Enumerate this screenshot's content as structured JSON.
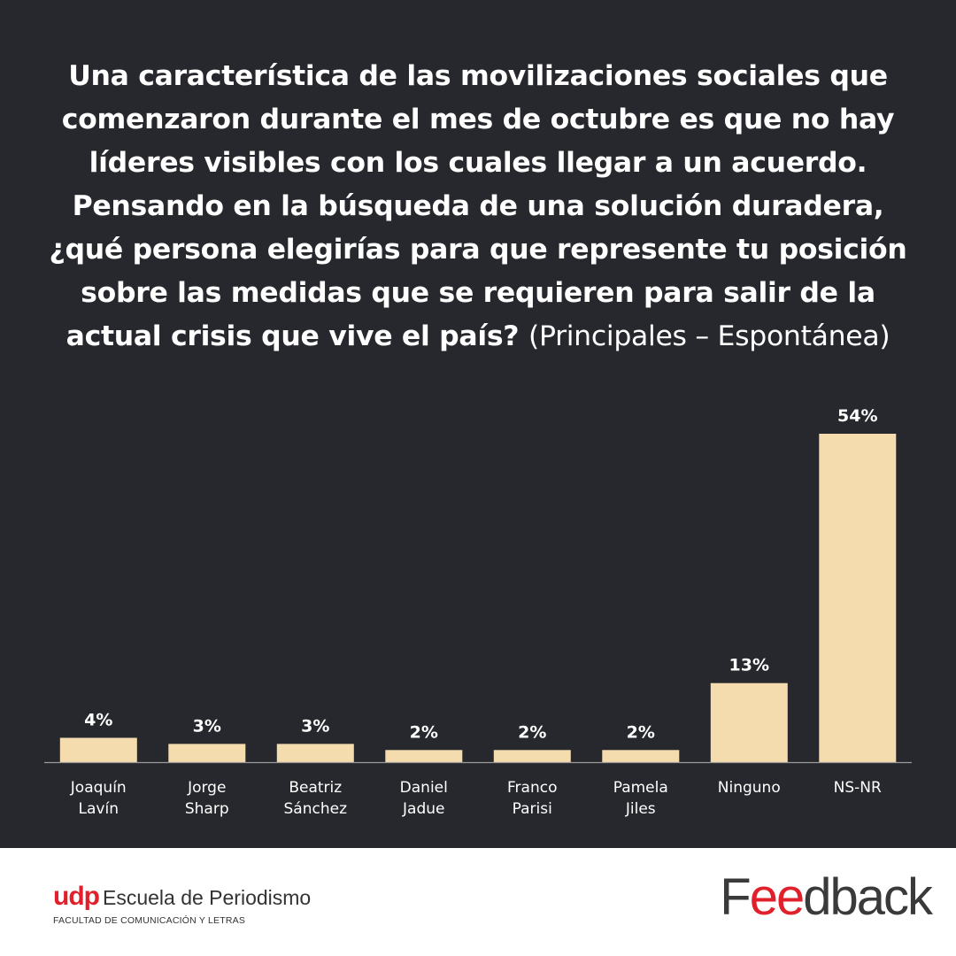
{
  "title": {
    "lines": [
      "Una característica de las movilizaciones sociales que",
      "comenzaron durante el mes de octubre es que no hay",
      "líderes visibles con los cuales llegar a un acuerdo.",
      "Pensando en la búsqueda de una solución duradera,",
      "¿qué persona elegirías para que represente tu posición",
      "sobre las medidas que se requieren para salir de la",
      "actual crisis que vive el país?"
    ],
    "subtitle": "(Principales – Espontánea)"
  },
  "chart_data": {
    "type": "bar",
    "categories": [
      [
        "Joaquín",
        "Lavín"
      ],
      [
        "Jorge",
        "Sharp"
      ],
      [
        "Beatriz",
        "Sánchez"
      ],
      [
        "Daniel",
        "Jadue"
      ],
      [
        "Franco",
        "Parisi"
      ],
      [
        "Pamela",
        "Jiles"
      ],
      [
        "Ninguno"
      ],
      [
        "NS-NR"
      ]
    ],
    "values": [
      4,
      3,
      3,
      2,
      2,
      2,
      13,
      54
    ],
    "value_labels": [
      "4%",
      "3%",
      "3%",
      "2%",
      "2%",
      "2%",
      "13%",
      "54%"
    ],
    "ylim": [
      0,
      54
    ],
    "grid": false,
    "bar_color": "#f4dcae",
    "label_color": "#ffffff",
    "axis_color": "#9a9a9a"
  },
  "footer": {
    "udp_mark": "udp",
    "udp_school": "Escuela de Periodismo",
    "udp_faculty": "FACULTAD DE COMUNICACIÓN Y LETRAS",
    "feedback_logo": {
      "pre": "F",
      "ee": "ee",
      "post": "dback"
    }
  }
}
